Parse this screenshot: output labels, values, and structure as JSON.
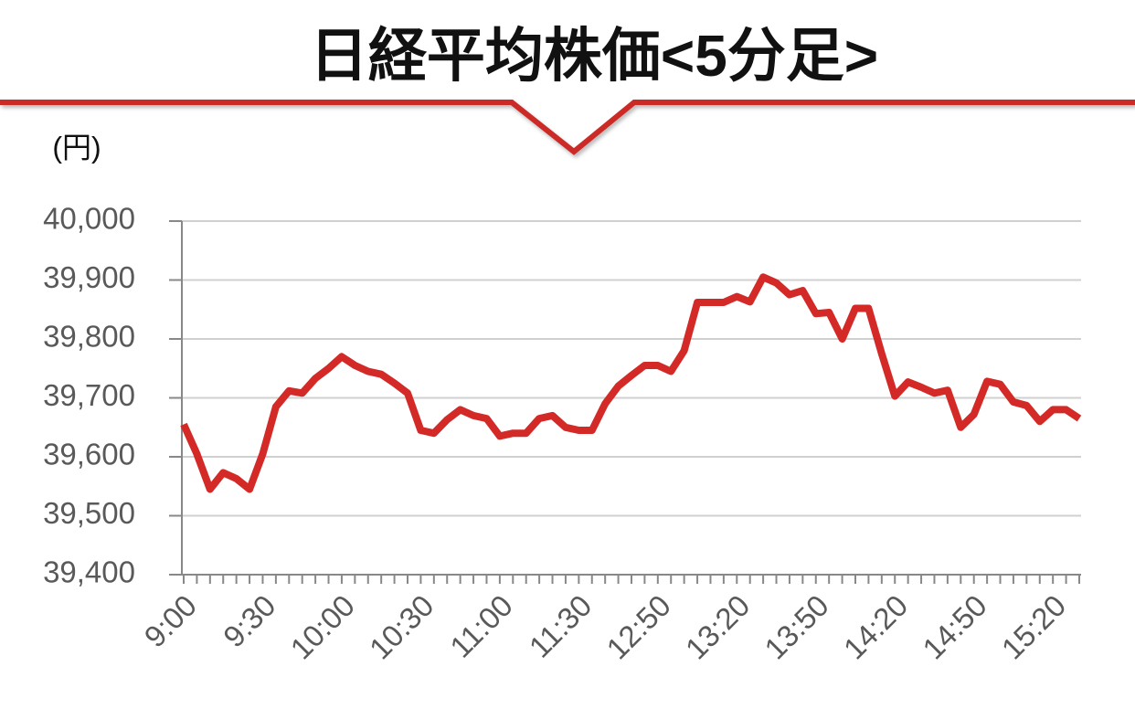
{
  "chart_data": {
    "type": "line",
    "title": "日経平均株価<5分足>",
    "y_label": "(円)",
    "categories": [
      "9:00",
      null,
      null,
      null,
      null,
      null,
      "9:30",
      null,
      null,
      null,
      null,
      null,
      "10:00",
      null,
      null,
      null,
      null,
      null,
      "10:30",
      null,
      null,
      null,
      null,
      null,
      "11:00",
      null,
      null,
      null,
      null,
      null,
      "11:30",
      null,
      null,
      null,
      null,
      null,
      "12:50",
      null,
      null,
      null,
      null,
      null,
      "13:20",
      null,
      null,
      null,
      null,
      null,
      "13:50",
      null,
      null,
      null,
      null,
      null,
      "14:20",
      null,
      null,
      null,
      null,
      null,
      "14:50",
      null,
      null,
      null,
      null,
      null,
      "15:20",
      null,
      null
    ],
    "series": [
      {
        "name": "日経平均株価",
        "color": "#d42a27",
        "values": [
          39655,
          39605,
          39545,
          39573,
          39563,
          39545,
          39605,
          39685,
          39712,
          39708,
          39733,
          39750,
          39770,
          39755,
          39745,
          39740,
          39725,
          39708,
          39645,
          39640,
          39663,
          39680,
          39670,
          39665,
          39635,
          39640,
          39640,
          39665,
          39670,
          39650,
          39645,
          39645,
          39690,
          39720,
          39738,
          39755,
          39755,
          39745,
          39780,
          39862,
          39862,
          39862,
          39872,
          39863,
          39905,
          39895,
          39875,
          39882,
          39843,
          39845,
          39800,
          39852,
          39852,
          39775,
          39703,
          39727,
          39718,
          39708,
          39713,
          39650,
          39672,
          39728,
          39723,
          39693,
          39687,
          39660,
          39680,
          39680,
          39665
        ]
      }
    ],
    "ylim": [
      39400,
      40000
    ],
    "yticks": [
      {
        "value": 39400,
        "label": "39,400"
      },
      {
        "value": 39500,
        "label": "39,500"
      },
      {
        "value": 39600,
        "label": "39,600"
      },
      {
        "value": 39700,
        "label": "39,700"
      },
      {
        "value": 39800,
        "label": "39,800"
      },
      {
        "value": 39900,
        "label": "39,900"
      },
      {
        "value": 40000,
        "label": "40,000"
      }
    ],
    "grid": true
  }
}
